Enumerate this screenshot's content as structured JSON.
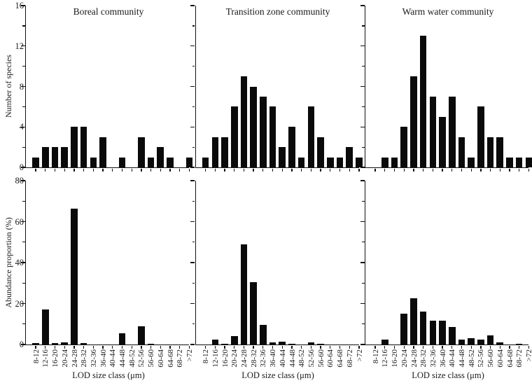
{
  "figure": {
    "background": "#ffffff",
    "bar_color": "#0a0a0a",
    "axis_color": "#111111",
    "text_color": "#1a1a1a"
  },
  "chart_data": {
    "type": "bar",
    "title": "",
    "x_axis_label": "LOD size class (μm)",
    "col_titles": [
      "Boreal community",
      "Transition zone community",
      "Warm water community"
    ],
    "categories": [
      "8-12",
      "12-16",
      "16-20",
      "20-24",
      "24-28",
      "28-32",
      "32-36",
      "36-40",
      "40-44",
      "44-48",
      "48-52",
      "52-56",
      "56-60",
      "60-64",
      "64-68",
      "68-72",
      ">72"
    ],
    "grid": false,
    "legend": null,
    "rows": [
      {
        "ylabel": "Number of species",
        "ylim": [
          0,
          16
        ],
        "yticks": [
          0,
          4,
          8,
          12,
          16
        ],
        "minor_tick_step": 2,
        "series": [
          {
            "name": "Boreal community",
            "values": [
              1,
              2,
              2,
              2,
              4,
              4,
              1,
              3,
              0,
              1,
              0,
              3,
              1,
              2,
              1,
              0,
              1
            ]
          },
          {
            "name": "Transition zone community",
            "values": [
              1,
              3,
              3,
              6,
              9,
              8,
              7,
              6,
              2,
              4,
              1,
              6,
              3,
              1,
              1,
              2,
              1
            ]
          },
          {
            "name": "Warm water community",
            "values": [
              0,
              1,
              1,
              4,
              9,
              13,
              7,
              5,
              7,
              3,
              1,
              6,
              3,
              3,
              1,
              1,
              1
            ]
          }
        ]
      },
      {
        "ylabel": "Abundance proportion (%)",
        "ylim": [
          0,
          80
        ],
        "yticks": [
          0,
          20,
          40,
          60,
          80
        ],
        "minor_tick_step": 10,
        "series": [
          {
            "name": "Boreal community",
            "values": [
              0.8,
              17,
              0.8,
              1.2,
              66.5,
              0.8,
              0,
              0,
              0,
              5.5,
              0,
              8.8,
              0.5,
              0,
              0,
              0,
              0
            ]
          },
          {
            "name": "Transition zone community",
            "values": [
              0,
              2.5,
              0.4,
              4,
              49,
              30.5,
              9.7,
              1,
              1.5,
              0.5,
              0,
              1,
              0.2,
              0,
              0,
              0,
              0
            ]
          },
          {
            "name": "Warm water community",
            "values": [
              0,
              2.5,
              0,
              15,
              22.5,
              16,
              11.5,
              11.5,
              8.5,
              2.5,
              3,
              2.5,
              4.3,
              1,
              0,
              0.3,
              0
            ]
          }
        ]
      }
    ]
  }
}
